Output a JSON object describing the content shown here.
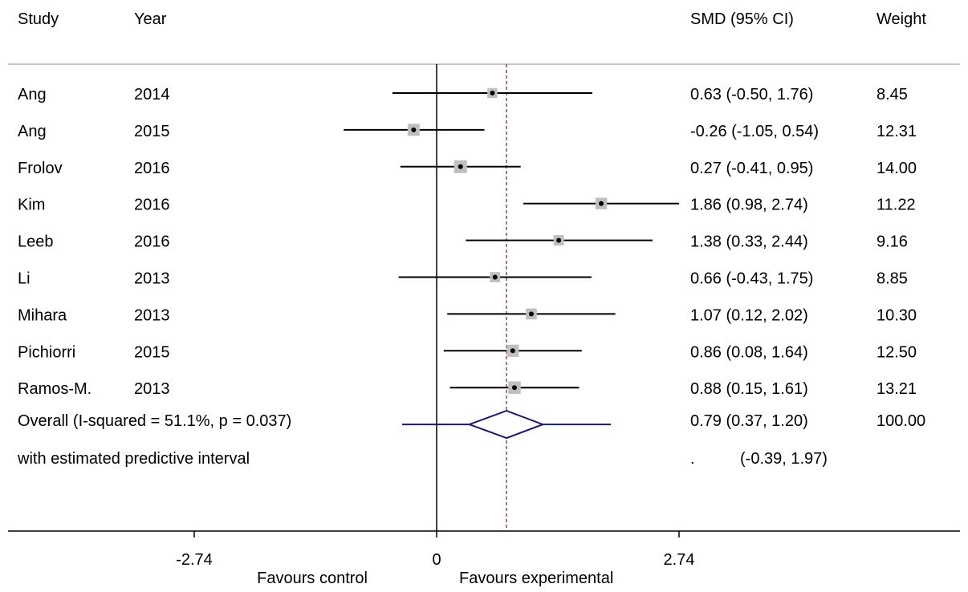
{
  "chart_data": {
    "type": "forest",
    "headers": {
      "study": "Study",
      "year": "Year",
      "estimate": "SMD (95% CI)",
      "weight": "Weight"
    },
    "studies": [
      {
        "study": "Ang",
        "year": "2014",
        "smd": 0.63,
        "lower": -0.5,
        "upper": 1.76,
        "ci_text": "0.63 (-0.50, 1.76)",
        "weight": 8.45,
        "weight_text": "8.45"
      },
      {
        "study": "Ang",
        "year": "2015",
        "smd": -0.26,
        "lower": -1.05,
        "upper": 0.54,
        "ci_text": "-0.26 (-1.05, 0.54)",
        "weight": 12.31,
        "weight_text": "12.31"
      },
      {
        "study": "Frolov",
        "year": "2016",
        "smd": 0.27,
        "lower": -0.41,
        "upper": 0.95,
        "ci_text": "0.27 (-0.41, 0.95)",
        "weight": 14.0,
        "weight_text": "14.00"
      },
      {
        "study": "Kim",
        "year": "2016",
        "smd": 1.86,
        "lower": 0.98,
        "upper": 2.74,
        "ci_text": "1.86 (0.98, 2.74)",
        "weight": 11.22,
        "weight_text": "11.22"
      },
      {
        "study": "Leeb",
        "year": "2016",
        "smd": 1.38,
        "lower": 0.33,
        "upper": 2.44,
        "ci_text": "1.38 (0.33, 2.44)",
        "weight": 9.16,
        "weight_text": "9.16"
      },
      {
        "study": "Li",
        "year": "2013",
        "smd": 0.66,
        "lower": -0.43,
        "upper": 1.75,
        "ci_text": "0.66 (-0.43, 1.75)",
        "weight": 8.85,
        "weight_text": "8.85"
      },
      {
        "study": "Mihara",
        "year": "2013",
        "smd": 1.07,
        "lower": 0.12,
        "upper": 2.02,
        "ci_text": "1.07 (0.12, 2.02)",
        "weight": 10.3,
        "weight_text": "10.30"
      },
      {
        "study": "Pichiorri",
        "year": "2015",
        "smd": 0.86,
        "lower": 0.08,
        "upper": 1.64,
        "ci_text": "0.86 (0.08, 1.64)",
        "weight": 12.5,
        "weight_text": "12.50"
      },
      {
        "study": "Ramos-M.",
        "year": "2013",
        "smd": 0.88,
        "lower": 0.15,
        "upper": 1.61,
        "ci_text": "0.88 (0.15, 1.61)",
        "weight": 13.21,
        "weight_text": "13.21"
      }
    ],
    "overall": {
      "label": "Overall  (I-squared = 51.1%, p = 0.037)",
      "smd": 0.79,
      "lower": 0.37,
      "upper": 1.2,
      "ci_text": "0.79 (0.37, 1.20)",
      "weight_text": "100.00",
      "predictive_interval": {
        "label": "with estimated predictive interval",
        "lower": -0.39,
        "upper": 1.97,
        "marker_text": ".",
        "ci_text": "(-0.39, 1.97)"
      }
    },
    "x_axis": {
      "ticks": [
        -2.74,
        0,
        2.74
      ],
      "tick_labels": [
        "-2.74",
        "0",
        "2.74"
      ],
      "xlim": [
        -4.88,
        6.0
      ],
      "null_line": 0
    },
    "direction_labels": {
      "left": "Favours control",
      "right": "Favours experimental"
    },
    "colors": {
      "text": "#000000",
      "ci_line": "#000000",
      "weight_box": "#bfbfbf",
      "point": "#000000",
      "overall": "#1a1a7a",
      "reference_line": "#8b2c2c",
      "frame": "#b0b0b0"
    }
  }
}
